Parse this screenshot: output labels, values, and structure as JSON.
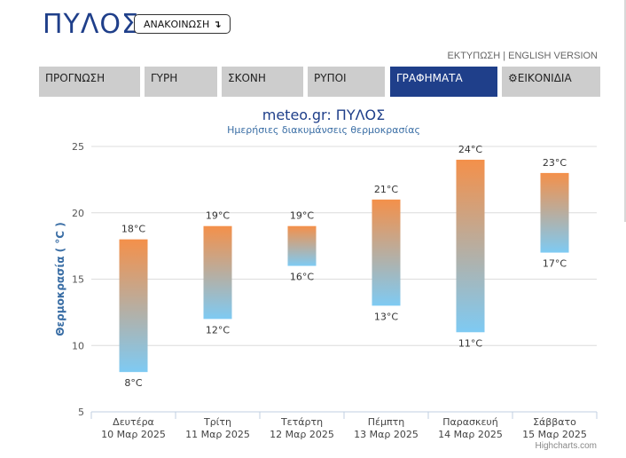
{
  "header": {
    "title": "ΠΥΛΟΣ",
    "announce_label": "ΑΝΑΚΟΙΝΩΣΗ",
    "announce_icon": "arrow-return-icon",
    "print_label": "ΕΚΤΥΠΩΣΗ",
    "separator": "|",
    "english_label": "ENGLISH VERSION"
  },
  "nav": {
    "tabs": [
      {
        "label": "ΠΡΟΓΝΩΣΗ",
        "active": false
      },
      {
        "label": "ΓΥΡΗ",
        "active": false
      },
      {
        "label": "ΣΚΟΝΗ",
        "active": false
      },
      {
        "label": "ΡΥΠΟΙ",
        "active": false
      },
      {
        "label": "ΓΡΑΦΗΜΑΤΑ",
        "active": true
      },
      {
        "label": "ΕΙΚΟΝΙΔΙΑ",
        "active": false,
        "icon": "gear-icon"
      }
    ],
    "colors": {
      "active": "#1f3f8a",
      "inactive": "#cdcdcd"
    }
  },
  "chart_data": {
    "type": "columnrange",
    "title": "meteo.gr: ΠΥΛΟΣ",
    "subtitle": "Ημερήσιες διακυμάνσεις θερμοκρασίας",
    "ylabel": "Θερμοκρασία ( °C )",
    "ylim": [
      5,
      25
    ],
    "yticks": [
      5,
      10,
      15,
      20,
      25
    ],
    "grid": true,
    "legend": "none",
    "categories": [
      [
        "Δευτέρα",
        "10 Μαρ 2025"
      ],
      [
        "Τρίτη",
        "11 Μαρ 2025"
      ],
      [
        "Τετάρτη",
        "12 Μαρ 2025"
      ],
      [
        "Πέμπτη",
        "13 Μαρ 2025"
      ],
      [
        "Παρασκευή",
        "14 Μαρ 2025"
      ],
      [
        "Σάββατο",
        "15 Μαρ 2025"
      ]
    ],
    "low": [
      8,
      12,
      16,
      13,
      11,
      17
    ],
    "high": [
      18,
      19,
      19,
      21,
      24,
      23
    ],
    "unit": "°C",
    "colors": {
      "top": "#f4904a",
      "bottom": "#7ecaf3",
      "title": "#1f3f8a",
      "subtitle": "#3a6ea5",
      "ylabel": "#3a6ea5"
    },
    "credits": "Highcharts.com"
  }
}
